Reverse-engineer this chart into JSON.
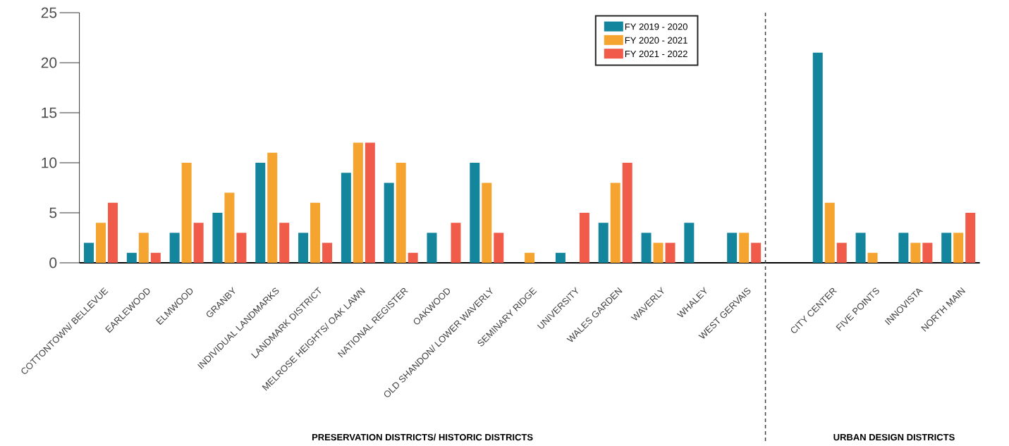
{
  "chart_data": {
    "type": "bar",
    "categories": [
      "COTTONTOWN/ BELLEVUE",
      "EARLEWOOD",
      "ELMWOOD",
      "GRANBY",
      "INDIVIDUAL LANDMARKS",
      "LANDMARK DISTRICT",
      "MELROSE HEIGHTS/ OAK LAWN",
      "NATIONAL REGISTER",
      "OAKWOOD",
      "OLD SHANDON/ LOWER WAVERLY",
      "SEMINARY RIDGE",
      "UNIVERSITY",
      "WALES GARDEN",
      "WAVERLY",
      "WHALEY",
      "WEST GERVAIS",
      null,
      "CITY CENTER",
      "FIVE POINTS",
      "INNOVISTA",
      "NORTH MAIN"
    ],
    "series": [
      {
        "name": "FY 2019 - 2020",
        "color": "#13869e",
        "values": [
          2,
          1,
          3,
          5,
          10,
          3,
          9,
          8,
          3,
          10,
          0,
          1,
          4,
          3,
          4,
          3,
          null,
          21,
          3,
          3,
          3
        ]
      },
      {
        "name": "FY 2020 - 2021",
        "color": "#f5a42f",
        "values": [
          4,
          3,
          10,
          7,
          11,
          6,
          12,
          10,
          0,
          8,
          1,
          0,
          8,
          2,
          0,
          3,
          null,
          6,
          1,
          2,
          3
        ]
      },
      {
        "name": "FY 2021 - 2022",
        "color": "#f05b4a",
        "values": [
          6,
          1,
          4,
          3,
          4,
          2,
          12,
          1,
          4,
          3,
          0,
          5,
          10,
          2,
          0,
          2,
          null,
          2,
          0,
          2,
          5
        ]
      }
    ],
    "ylim": [
      0,
      25
    ],
    "yticks": [
      0,
      5,
      10,
      15,
      20,
      25
    ],
    "legend": "top",
    "annotations": [
      "PRESERVATION DISTRICTS/ HISTORIC DISTRICTS",
      "URBAN DESIGN DISTRICTS"
    ]
  }
}
